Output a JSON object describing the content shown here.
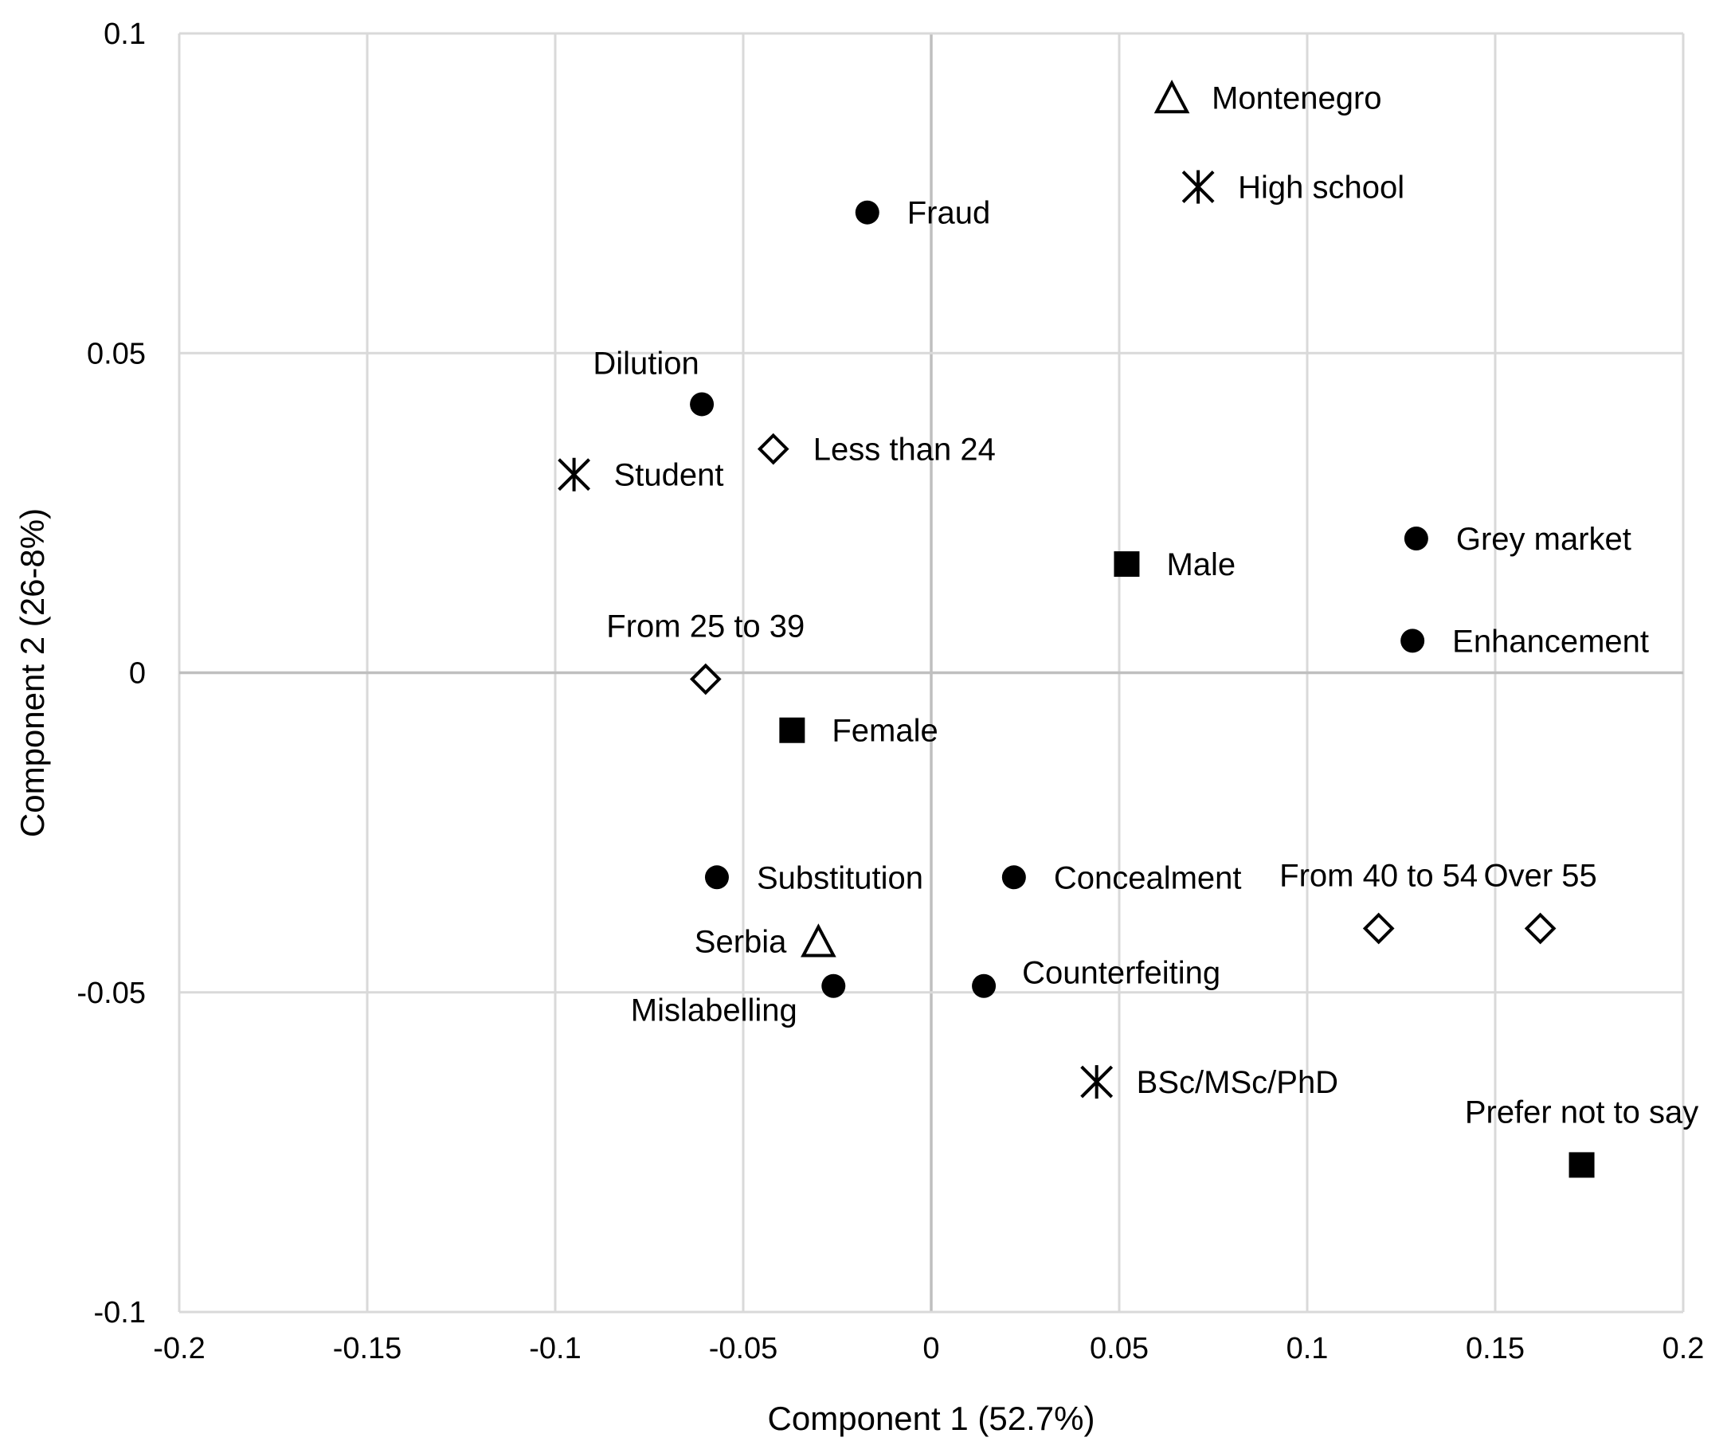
{
  "chart_data": {
    "type": "scatter",
    "title": "",
    "xlabel": "Component 1 (52.7%)",
    "ylabel": "Component 2 (26-8%)",
    "xlim": [
      -0.2,
      0.2
    ],
    "ylim": [
      -0.1,
      0.1
    ],
    "xticks": [
      -0.2,
      -0.15,
      -0.1,
      -0.05,
      0,
      0.05,
      0.1,
      0.15,
      0.2
    ],
    "xtick_labels": [
      "-0.2",
      "-0.15",
      "-0.1",
      "-0.05",
      "0",
      "0.05",
      "0.1",
      "0.15",
      "0.2"
    ],
    "yticks": [
      -0.1,
      -0.05,
      0,
      0.05,
      0.1
    ],
    "ytick_labels": [
      "-0.1",
      "-0.05",
      "0",
      "0.05",
      "0.1"
    ],
    "grid": true,
    "points": [
      {
        "label": "Fraud",
        "x": -0.017,
        "y": 0.072,
        "marker": "circle",
        "label_pos": "right"
      },
      {
        "label": "Dilution",
        "x": -0.061,
        "y": 0.042,
        "marker": "circle",
        "label_pos": "above-left"
      },
      {
        "label": "Grey market",
        "x": 0.129,
        "y": 0.021,
        "marker": "circle",
        "label_pos": "right"
      },
      {
        "label": "Enhancement",
        "x": 0.128,
        "y": 0.005,
        "marker": "circle",
        "label_pos": "right"
      },
      {
        "label": "Substitution",
        "x": -0.057,
        "y": -0.032,
        "marker": "circle",
        "label_pos": "right"
      },
      {
        "label": "Concealment",
        "x": 0.022,
        "y": -0.032,
        "marker": "circle",
        "label_pos": "right"
      },
      {
        "label": "Mislabelling",
        "x": -0.026,
        "y": -0.049,
        "marker": "circle",
        "label_pos": "below-left"
      },
      {
        "label": "Counterfeiting",
        "x": 0.014,
        "y": -0.049,
        "marker": "circle",
        "label_pos": "above-right"
      },
      {
        "label": "Montenegro",
        "x": 0.064,
        "y": 0.09,
        "marker": "triangle",
        "label_pos": "right"
      },
      {
        "label": "Serbia",
        "x": -0.03,
        "y": -0.042,
        "marker": "triangle",
        "label_pos": "left"
      },
      {
        "label": "High school",
        "x": 0.071,
        "y": 0.076,
        "marker": "asterisk",
        "label_pos": "right"
      },
      {
        "label": "Student",
        "x": -0.095,
        "y": 0.031,
        "marker": "asterisk",
        "label_pos": "right"
      },
      {
        "label": "BSc/MSc/PhD",
        "x": 0.044,
        "y": -0.064,
        "marker": "asterisk",
        "label_pos": "right"
      },
      {
        "label": "Less than 24",
        "x": -0.042,
        "y": 0.035,
        "marker": "diamond",
        "label_pos": "right"
      },
      {
        "label": "From 25 to 39",
        "x": -0.06,
        "y": -0.001,
        "marker": "diamond",
        "label_pos": "above"
      },
      {
        "label": "From 40 to 54",
        "x": 0.119,
        "y": -0.04,
        "marker": "diamond",
        "label_pos": "above"
      },
      {
        "label": "Over 55",
        "x": 0.162,
        "y": -0.04,
        "marker": "diamond",
        "label_pos": "above"
      },
      {
        "label": "Male",
        "x": 0.052,
        "y": 0.017,
        "marker": "square",
        "label_pos": "right"
      },
      {
        "label": "Female",
        "x": -0.037,
        "y": -0.009,
        "marker": "square",
        "label_pos": "right"
      },
      {
        "label": "Prefer not to say",
        "x": 0.173,
        "y": -0.077,
        "marker": "square",
        "label_pos": "above"
      }
    ]
  }
}
